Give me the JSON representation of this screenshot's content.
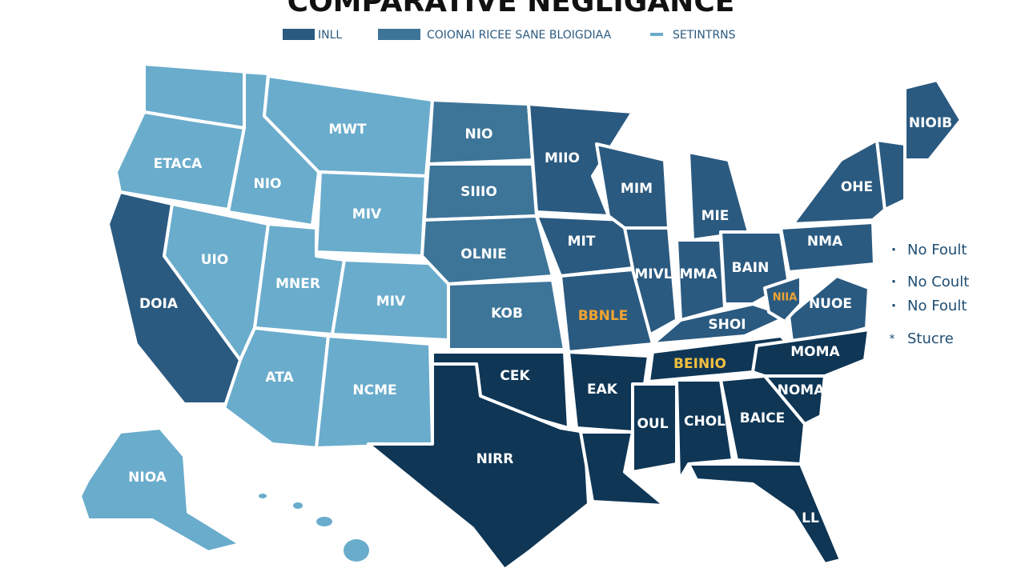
{
  "title": "COMPARATIVE NEGLIGANCE",
  "legend": [
    "INLL",
    "COIONAI RICEE SANE BLOIGDIAA",
    "SETINTRNS"
  ],
  "states": [
    "ETACA",
    "NIO",
    "MWT",
    "NIO",
    "SIIIO",
    "MIV",
    "UIO",
    "MNER",
    "MIV",
    "DOIA",
    "OLNIE",
    "ATA",
    "NCME",
    "KOB",
    "CEK",
    "NIRR",
    "MIIO",
    "MIT",
    "MIM",
    "MIE",
    "MIVL",
    "MMA",
    "BAIN",
    "OHE",
    "NMA",
    "NIOIB",
    "BBNLE",
    "SHOI",
    "NUOE",
    "NIIA",
    "BEINIO",
    "MOMA",
    "EAK",
    "OUL",
    "CHOL",
    "BAICE",
    "NOMA",
    "LL",
    "NIOA"
  ],
  "notes": [
    "No Foult",
    "No Coult",
    "No Foult",
    "Stucre"
  ]
}
